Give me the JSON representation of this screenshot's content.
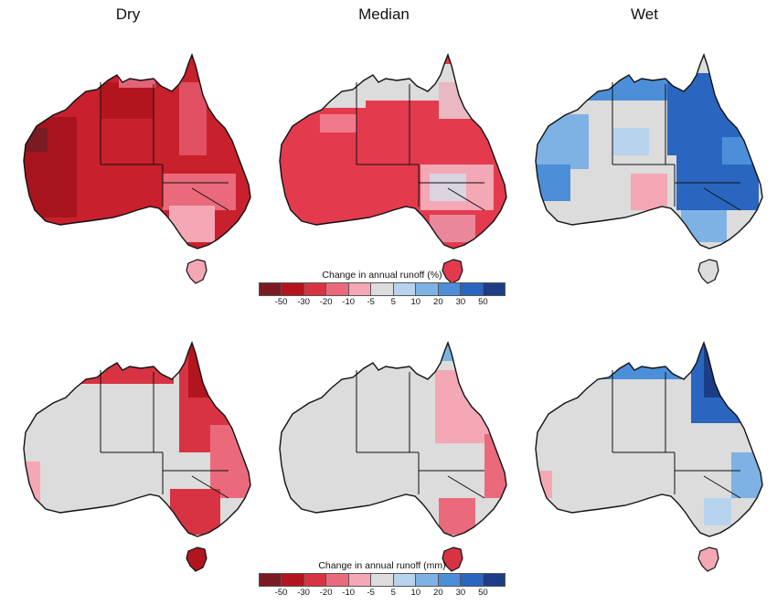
{
  "columns": [
    "Dry",
    "Median",
    "Wet"
  ],
  "legend_percent": {
    "title": "Change in annual runoff (%)",
    "ticks": [
      "-50",
      "-30",
      "-20",
      "-10",
      "-5",
      "5",
      "10",
      "20",
      "30",
      "50"
    ]
  },
  "legend_mm": {
    "title": "Change in annual runoff (mm)",
    "ticks": [
      "-50",
      "-30",
      "-20",
      "-10",
      "-5",
      "5",
      "10",
      "20",
      "30",
      "50"
    ]
  },
  "colors": {
    "bins": [
      "#7a1a22",
      "#b3151f",
      "#d83342",
      "#ea6a7c",
      "#f4a7b5",
      "#dcdcdc",
      "#b8d3ee",
      "#7fb2e4",
      "#4c8fd8",
      "#2a66bf",
      "#1d3d86"
    ],
    "neutral": "#dcdcdc",
    "outline": "#111111"
  },
  "maps": {
    "top_dry": "percent change, dry scenario",
    "top_median": "percent change, median scenario",
    "top_wet": "percent change, wet scenario",
    "bottom_dry": "mm change, dry scenario",
    "bottom_median": "mm change, median scenario",
    "bottom_wet": "mm change, wet scenario"
  }
}
